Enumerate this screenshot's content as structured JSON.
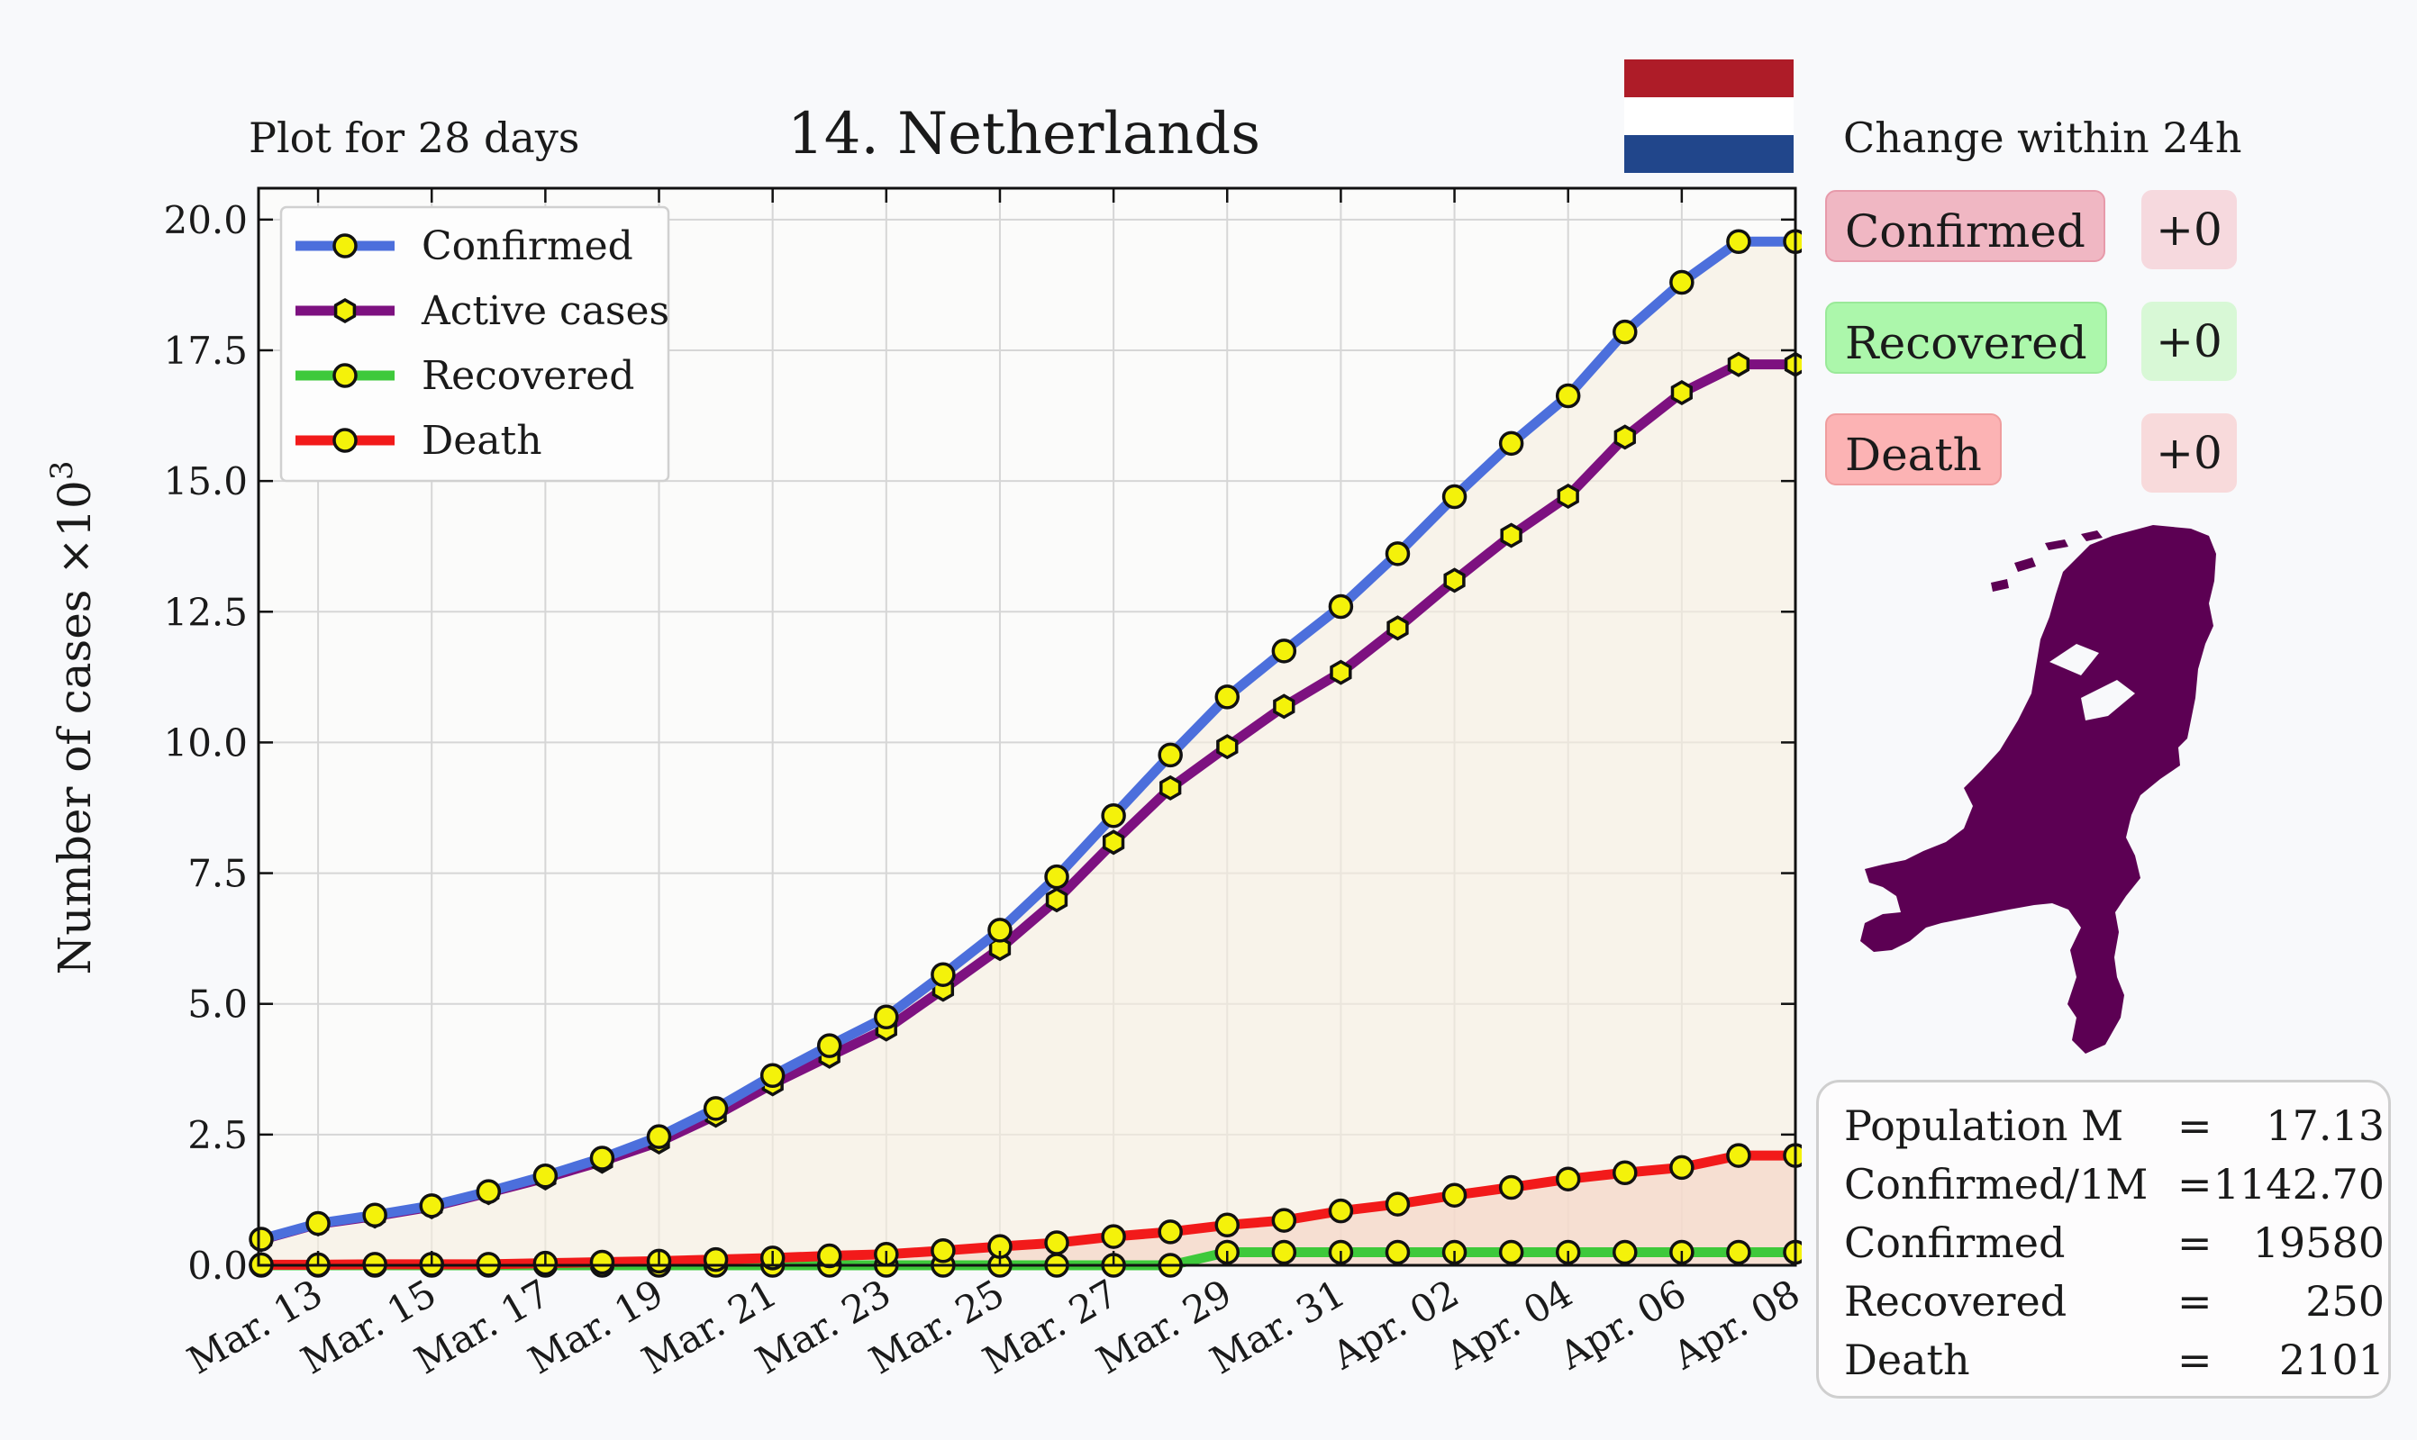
{
  "header": {
    "left_caption": "Plot for 28 days",
    "title": "14. Netherlands",
    "change_caption": "Change within 24h"
  },
  "flag": {
    "name": "netherlands-flag",
    "colors": [
      "#ae1c28",
      "#ffffff",
      "#21468b"
    ]
  },
  "change_panel": [
    {
      "label": "Confirmed",
      "value": "+0",
      "label_bg": "#f0b7c3",
      "value_bg": "#f6d9de",
      "border": "#e79aaa"
    },
    {
      "label": "Recovered",
      "value": "+0",
      "label_bg": "#acf7ab",
      "value_bg": "#d8f8d6",
      "border": "#9ae999"
    },
    {
      "label": "Death",
      "value": "+0",
      "label_bg": "#fcb3b4",
      "value_bg": "#f8dadb",
      "border": "#ef9d9e"
    }
  ],
  "map": {
    "name": "netherlands-map-icon",
    "color": "#5c0053"
  },
  "stats": [
    {
      "label": "Population M",
      "eq": "=",
      "value": "17.13"
    },
    {
      "label": "Confirmed/1M",
      "eq": "=",
      "value": "1142.70"
    },
    {
      "label": "Confirmed",
      "eq": "=",
      "value": "19580"
    },
    {
      "label": "Recovered",
      "eq": "=",
      "value": "250"
    },
    {
      "label": "Death",
      "eq": "=",
      "value": "2101"
    }
  ],
  "chart_data": {
    "type": "line",
    "title": "14. Netherlands",
    "xlabel": "",
    "ylabel": "Number of cases ×10³",
    "ylabel_parts": {
      "text": "Number of cases ×10",
      "sup": "3"
    },
    "ylim": [
      0,
      20.6
    ],
    "yticks": [
      "0.0",
      "2.5",
      "5.0",
      "7.5",
      "10.0",
      "12.5",
      "15.0",
      "17.5",
      "20.0"
    ],
    "grid": true,
    "legend_position": "top-left",
    "x": [
      "Mar. 12",
      "Mar. 13",
      "Mar. 14",
      "Mar. 15",
      "Mar. 16",
      "Mar. 17",
      "Mar. 18",
      "Mar. 19",
      "Mar. 20",
      "Mar. 21",
      "Mar. 22",
      "Mar. 23",
      "Mar. 24",
      "Mar. 25",
      "Mar. 26",
      "Mar. 27",
      "Mar. 28",
      "Mar. 29",
      "Mar. 30",
      "Mar. 31",
      "Apr. 01",
      "Apr. 02",
      "Apr. 03",
      "Apr. 04",
      "Apr. 05",
      "Apr. 06",
      "Apr. 07",
      "Apr. 08"
    ],
    "xtick_labels": [
      "Mar. 13",
      "Mar. 15",
      "Mar. 17",
      "Mar. 19",
      "Mar. 21",
      "Mar. 23",
      "Mar. 25",
      "Mar. 27",
      "Mar. 29",
      "Mar. 31",
      "Apr. 02",
      "Apr. 04",
      "Apr. 06",
      "Apr. 08"
    ],
    "series": [
      {
        "name": "Confirmed",
        "color": "#4c6fdc",
        "marker": "circle",
        "values": [
          0.5,
          0.8,
          0.96,
          1.14,
          1.41,
          1.71,
          2.05,
          2.46,
          3.0,
          3.63,
          4.2,
          4.75,
          5.56,
          6.41,
          7.43,
          8.6,
          9.76,
          10.87,
          11.75,
          12.6,
          13.61,
          14.7,
          15.72,
          16.63,
          17.85,
          18.8,
          19.58,
          19.58
        ]
      },
      {
        "name": "Active cases",
        "color": "#7d1180",
        "marker": "hexagon",
        "values": [
          0.49,
          0.79,
          0.94,
          1.12,
          1.39,
          1.67,
          1.99,
          2.36,
          2.87,
          3.47,
          4.0,
          4.52,
          5.28,
          6.06,
          6.99,
          8.09,
          9.13,
          9.92,
          10.69,
          11.34,
          12.19,
          13.1,
          13.96,
          14.71,
          15.84,
          16.69,
          17.23,
          17.23
        ]
      },
      {
        "name": "Recovered",
        "color": "#3ec93b",
        "marker": "circle",
        "values": [
          0.0,
          0.0,
          0.0,
          0.0,
          0.0,
          0.0,
          0.0,
          0.0,
          0.0,
          0.0,
          0.0,
          0.0,
          0.0,
          0.0,
          0.0,
          0.0,
          0.0,
          0.25,
          0.25,
          0.25,
          0.25,
          0.25,
          0.25,
          0.25,
          0.25,
          0.25,
          0.25,
          0.25
        ]
      },
      {
        "name": "Death",
        "color": "#f21a1a",
        "marker": "circle",
        "values": [
          0.01,
          0.01,
          0.02,
          0.02,
          0.02,
          0.04,
          0.06,
          0.08,
          0.11,
          0.14,
          0.18,
          0.21,
          0.28,
          0.36,
          0.43,
          0.55,
          0.64,
          0.77,
          0.86,
          1.04,
          1.17,
          1.34,
          1.49,
          1.65,
          1.77,
          1.87,
          2.1,
          2.1
        ]
      }
    ]
  }
}
